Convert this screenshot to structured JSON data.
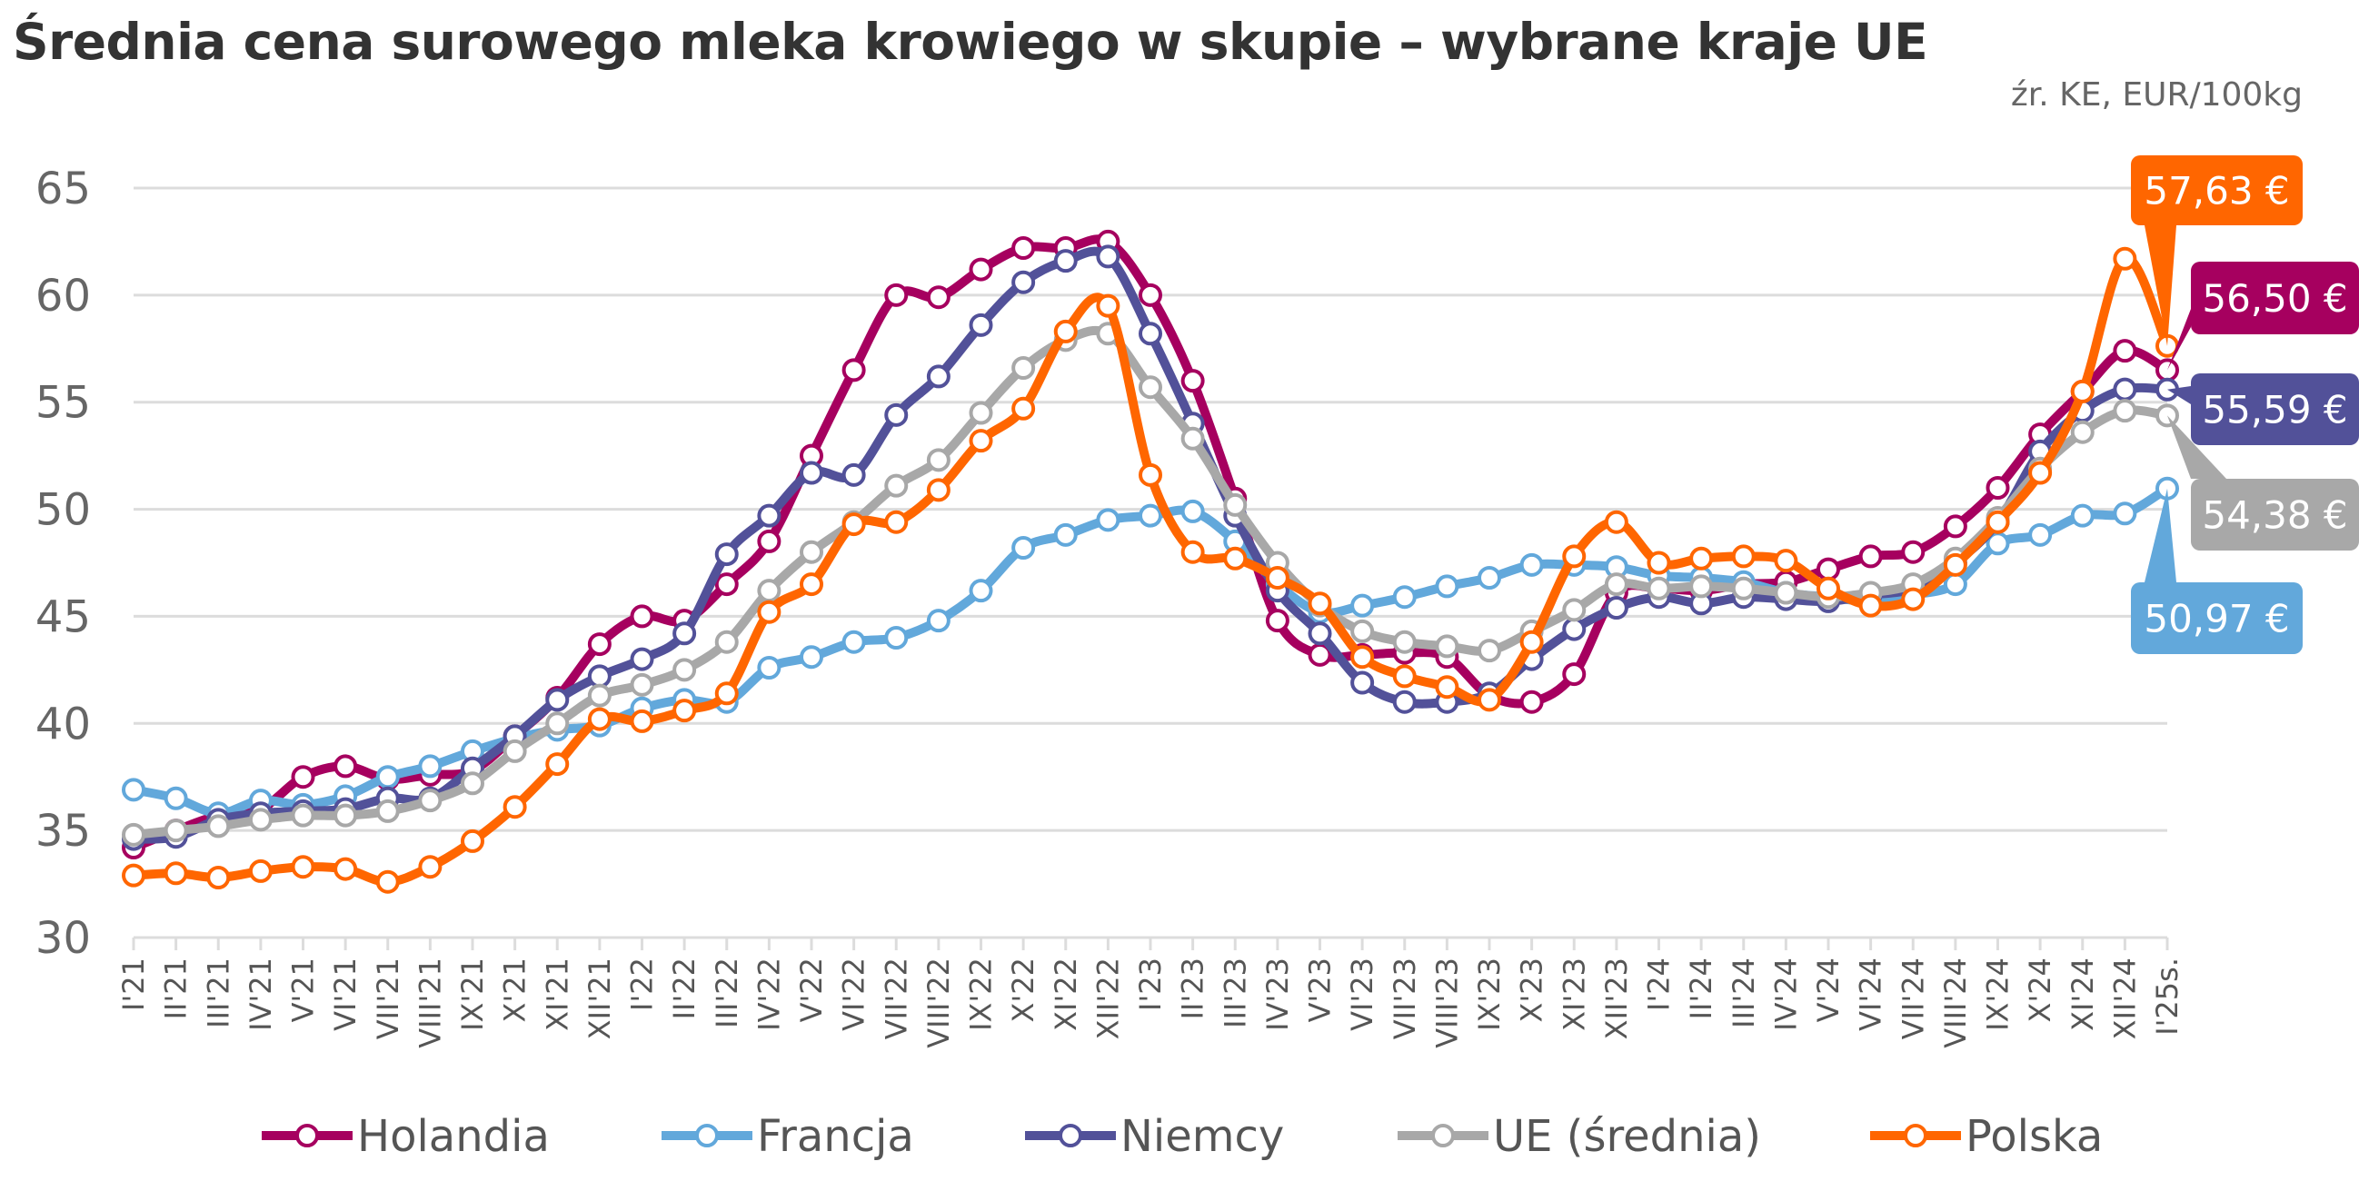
{
  "chart_data": {
    "type": "line",
    "title": "Średnia cena surowego mleka krowiego w skupie – wybrane kraje UE",
    "source": "źr. KE, EUR/100kg",
    "xlabel": "",
    "ylabel": "",
    "ylim": [
      30,
      65
    ],
    "yticks": [
      "30",
      "35",
      "40",
      "45",
      "50",
      "55",
      "60",
      "65"
    ],
    "grid": true,
    "legend_position": "bottom",
    "categories": [
      "I'21",
      "II'21",
      "III'21",
      "IV'21",
      "V'21",
      "VI'21",
      "VII'21",
      "VIII'21",
      "IX'21",
      "X'21",
      "XI'21",
      "XII'21",
      "I'22",
      "II'22",
      "III'22",
      "IV'22",
      "V'22",
      "VI'22",
      "VII'22",
      "VIII'22",
      "IX'22",
      "X'22",
      "XI'22",
      "XII'22",
      "I'23",
      "II'23",
      "III'23",
      "IV'23",
      "V'23",
      "VI'23",
      "VII'23",
      "VIII'23",
      "IX'23",
      "X'23",
      "XI'23",
      "XII'23",
      "I'24",
      "II'24",
      "III'24",
      "IV'24",
      "V'24",
      "VI'24",
      "VII'24",
      "VIII'24",
      "IX'24",
      "X'24",
      "XI'24",
      "XII'24",
      "I'25s."
    ],
    "series": [
      {
        "name": "Holandia",
        "color": "#A6005F",
        "label": "56,50 €",
        "values": [
          34.2,
          35.0,
          35.7,
          36.0,
          37.5,
          38.0,
          37.4,
          37.6,
          37.8,
          39.4,
          41.2,
          43.7,
          45.0,
          44.8,
          46.5,
          48.5,
          52.5,
          56.5,
          60.0,
          59.9,
          61.2,
          62.2,
          62.2,
          62.5,
          60.0,
          56.0,
          50.5,
          44.8,
          43.2,
          43.2,
          43.3,
          43.1,
          41.3,
          41.0,
          42.3,
          46.1,
          46.3,
          46.2,
          46.5,
          46.6,
          47.2,
          47.8,
          48.0,
          49.2,
          51.0,
          53.5,
          55.5,
          57.4,
          56.5
        ]
      },
      {
        "name": "Francja",
        "color": "#62A8DB",
        "label": "50,97 €",
        "values": [
          36.9,
          36.5,
          35.8,
          36.4,
          36.2,
          36.6,
          37.5,
          38.0,
          38.7,
          39.3,
          39.7,
          39.9,
          40.7,
          41.1,
          41.0,
          42.6,
          43.1,
          43.8,
          44.0,
          44.8,
          46.2,
          48.2,
          48.8,
          49.5,
          49.7,
          49.9,
          48.5,
          46.5,
          45.2,
          45.5,
          45.9,
          46.4,
          46.8,
          47.4,
          47.4,
          47.3,
          46.9,
          46.8,
          46.6,
          46.1,
          45.9,
          45.7,
          46.0,
          46.5,
          48.4,
          48.8,
          49.7,
          49.8,
          50.97
        ]
      },
      {
        "name": "Niemcy",
        "color": "#525199",
        "label": "55,59 €",
        "values": [
          34.6,
          34.7,
          35.5,
          35.8,
          35.9,
          36.0,
          36.5,
          36.5,
          37.9,
          39.4,
          41.1,
          42.2,
          43.0,
          44.2,
          47.9,
          49.7,
          51.7,
          51.6,
          54.4,
          56.2,
          58.6,
          60.6,
          61.6,
          61.8,
          58.2,
          54.0,
          49.7,
          46.2,
          44.2,
          41.9,
          41.0,
          41.0,
          41.4,
          43.0,
          44.4,
          45.4,
          45.9,
          45.6,
          45.9,
          45.8,
          45.7,
          46.0,
          46.3,
          47.5,
          49.4,
          52.7,
          54.6,
          55.6,
          55.59
        ]
      },
      {
        "name": "UE (średnia)",
        "color": "#A8A8A8",
        "label": "54,38 €",
        "values": [
          34.8,
          35.0,
          35.2,
          35.5,
          35.7,
          35.7,
          35.9,
          36.4,
          37.2,
          38.7,
          40.0,
          41.3,
          41.8,
          42.5,
          43.8,
          46.2,
          48.0,
          49.4,
          51.1,
          52.3,
          54.5,
          56.6,
          57.9,
          58.2,
          55.7,
          53.3,
          50.2,
          47.5,
          45.5,
          44.3,
          43.8,
          43.6,
          43.4,
          44.3,
          45.3,
          46.5,
          46.3,
          46.4,
          46.3,
          46.1,
          45.9,
          46.1,
          46.5,
          47.7,
          49.6,
          51.9,
          53.6,
          54.6,
          54.38
        ]
      },
      {
        "name": "Polska",
        "color": "#FF6600",
        "label": "57,63 €",
        "values": [
          32.9,
          33.0,
          32.8,
          33.1,
          33.3,
          33.2,
          32.6,
          33.3,
          34.5,
          36.1,
          38.1,
          40.2,
          40.1,
          40.6,
          41.4,
          45.2,
          46.5,
          49.3,
          49.4,
          50.9,
          53.2,
          54.7,
          58.3,
          59.5,
          51.6,
          48.0,
          47.7,
          46.8,
          45.6,
          43.1,
          42.2,
          41.7,
          41.1,
          43.8,
          47.8,
          49.4,
          47.5,
          47.7,
          47.8,
          47.6,
          46.3,
          45.5,
          45.8,
          47.4,
          49.4,
          51.7,
          55.5,
          61.7,
          57.63
        ]
      }
    ]
  }
}
